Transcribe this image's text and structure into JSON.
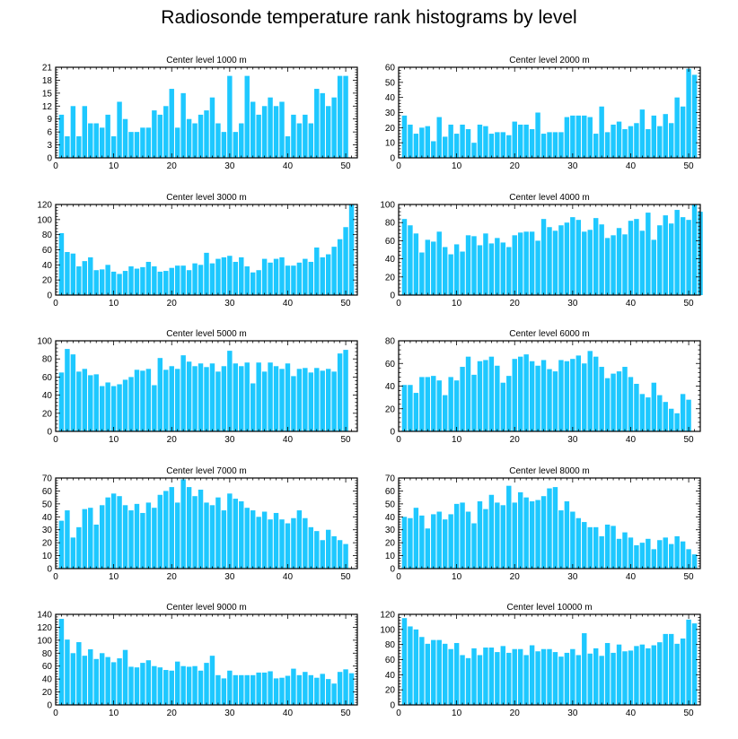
{
  "title": "Radiosonde temperature rank histograms by level",
  "chart_data": [
    {
      "type": "bar",
      "title": "Center level 1000 m",
      "xlim": [
        0,
        52
      ],
      "ylim": [
        0,
        21
      ],
      "xticks": [
        0,
        10,
        20,
        30,
        40,
        50
      ],
      "yticks": [
        0,
        3,
        6,
        9,
        12,
        15,
        18,
        21
      ],
      "values": [
        10,
        5,
        12,
        5,
        12,
        8,
        8,
        7,
        10,
        5,
        13,
        9,
        6,
        6,
        7,
        7,
        11,
        10,
        12,
        16,
        7,
        15,
        9,
        8,
        10,
        11,
        14,
        8,
        6,
        19,
        6,
        8,
        19,
        13,
        10,
        12,
        14,
        12,
        13,
        5,
        10,
        8,
        10,
        8,
        16,
        15,
        12,
        14,
        19,
        19
      ]
    },
    {
      "type": "bar",
      "title": "Center level 2000 m",
      "xlim": [
        0,
        52
      ],
      "ylim": [
        0,
        60
      ],
      "xticks": [
        0,
        10,
        20,
        30,
        40,
        50
      ],
      "yticks": [
        0,
        10,
        20,
        30,
        40,
        50,
        60
      ],
      "values": [
        28,
        22,
        16,
        20,
        21,
        11,
        27,
        14,
        22,
        16,
        22,
        19,
        10,
        22,
        21,
        16,
        17,
        17,
        15,
        24,
        22,
        22,
        19,
        30,
        16,
        17,
        17,
        17,
        27,
        28,
        28,
        28,
        27,
        16,
        34,
        17,
        22,
        24,
        19,
        21,
        23,
        32,
        19,
        28,
        21,
        29,
        23,
        40,
        34,
        59,
        55
      ]
    },
    {
      "type": "bar",
      "title": "Center level 3000 m",
      "xlim": [
        0,
        52
      ],
      "ylim": [
        0,
        120
      ],
      "xticks": [
        0,
        10,
        20,
        30,
        40,
        50
      ],
      "yticks": [
        0,
        20,
        40,
        60,
        80,
        100,
        120
      ],
      "values": [
        82,
        57,
        55,
        38,
        45,
        50,
        33,
        34,
        40,
        31,
        28,
        32,
        38,
        35,
        37,
        44,
        38,
        31,
        32,
        36,
        39,
        39,
        33,
        42,
        40,
        56,
        42,
        48,
        50,
        52,
        44,
        50,
        38,
        30,
        33,
        48,
        43,
        48,
        50,
        39,
        39,
        43,
        48,
        44,
        63,
        50,
        54,
        64,
        74,
        90,
        120
      ]
    },
    {
      "type": "bar",
      "title": "Center level 4000 m",
      "xlim": [
        0,
        52
      ],
      "ylim": [
        0,
        100
      ],
      "xticks": [
        0,
        10,
        20,
        30,
        40,
        50
      ],
      "yticks": [
        0,
        20,
        40,
        60,
        80,
        100
      ],
      "values": [
        84,
        77,
        68,
        47,
        61,
        59,
        70,
        53,
        45,
        56,
        48,
        66,
        65,
        55,
        68,
        57,
        63,
        58,
        53,
        66,
        69,
        70,
        70,
        60,
        84,
        75,
        71,
        77,
        80,
        86,
        83,
        70,
        72,
        85,
        78,
        63,
        66,
        74,
        67,
        82,
        84,
        71,
        91,
        61,
        77,
        88,
        79,
        94,
        86,
        83,
        100,
        92
      ]
    },
    {
      "type": "bar",
      "title": "Center level 5000 m",
      "xlim": [
        0,
        52
      ],
      "ylim": [
        0,
        100
      ],
      "xticks": [
        0,
        10,
        20,
        30,
        40,
        50
      ],
      "yticks": [
        0,
        20,
        40,
        60,
        80,
        100
      ],
      "values": [
        65,
        91,
        85,
        66,
        69,
        62,
        63,
        50,
        54,
        50,
        52,
        57,
        60,
        68,
        67,
        69,
        51,
        81,
        68,
        72,
        69,
        84,
        77,
        72,
        75,
        71,
        75,
        66,
        72,
        89,
        75,
        72,
        76,
        53,
        76,
        66,
        76,
        72,
        69,
        75,
        61,
        69,
        70,
        65,
        70,
        67,
        69,
        66,
        86,
        90
      ]
    },
    {
      "type": "bar",
      "title": "Center level 6000 m",
      "xlim": [
        0,
        52
      ],
      "ylim": [
        0,
        80
      ],
      "xticks": [
        0,
        10,
        20,
        30,
        40,
        50
      ],
      "yticks": [
        0,
        20,
        40,
        60,
        80
      ],
      "values": [
        41,
        41,
        34,
        48,
        48,
        49,
        45,
        32,
        48,
        45,
        57,
        66,
        50,
        62,
        63,
        66,
        58,
        43,
        49,
        64,
        66,
        68,
        62,
        58,
        63,
        55,
        53,
        63,
        62,
        64,
        67,
        60,
        71,
        66,
        57,
        47,
        51,
        53,
        57,
        48,
        42,
        33,
        30,
        43,
        32,
        26,
        20,
        16,
        33,
        28
      ]
    },
    {
      "type": "bar",
      "title": "Center level 7000 m",
      "xlim": [
        0,
        52
      ],
      "ylim": [
        0,
        70
      ],
      "xticks": [
        0,
        10,
        20,
        30,
        40,
        50
      ],
      "yticks": [
        0,
        10,
        20,
        30,
        40,
        50,
        60,
        70
      ],
      "values": [
        37,
        45,
        24,
        32,
        46,
        47,
        34,
        49,
        55,
        58,
        56,
        49,
        45,
        50,
        43,
        51,
        47,
        57,
        60,
        63,
        51,
        69,
        63,
        56,
        61,
        51,
        49,
        55,
        45,
        58,
        54,
        52,
        47,
        45,
        40,
        44,
        38,
        43,
        38,
        35,
        39,
        45,
        39,
        32,
        29,
        22,
        30,
        25,
        22,
        19
      ]
    },
    {
      "type": "bar",
      "title": "Center level 8000 m",
      "xlim": [
        0,
        52
      ],
      "ylim": [
        0,
        70
      ],
      "xticks": [
        0,
        10,
        20,
        30,
        40,
        50
      ],
      "yticks": [
        0,
        10,
        20,
        30,
        40,
        50,
        60,
        70
      ],
      "values": [
        40,
        39,
        47,
        41,
        31,
        42,
        44,
        38,
        42,
        50,
        51,
        44,
        35,
        52,
        46,
        57,
        51,
        49,
        64,
        51,
        59,
        55,
        52,
        53,
        56,
        62,
        63,
        45,
        52,
        44,
        39,
        36,
        32,
        32,
        25,
        34,
        33,
        23,
        28,
        24,
        18,
        20,
        23,
        15,
        22,
        24,
        19,
        25,
        21,
        15,
        11
      ]
    },
    {
      "type": "bar",
      "title": "Center level 9000 m",
      "xlim": [
        0,
        52
      ],
      "ylim": [
        0,
        140
      ],
      "xticks": [
        0,
        10,
        20,
        30,
        40,
        50
      ],
      "yticks": [
        0,
        20,
        40,
        60,
        80,
        100,
        120,
        140
      ],
      "values": [
        133,
        101,
        80,
        97,
        76,
        86,
        71,
        80,
        74,
        66,
        72,
        85,
        59,
        58,
        65,
        69,
        60,
        58,
        54,
        53,
        67,
        60,
        59,
        60,
        53,
        65,
        76,
        46,
        41,
        53,
        46,
        46,
        46,
        46,
        50,
        50,
        52,
        41,
        42,
        45,
        56,
        46,
        51,
        46,
        42,
        48,
        40,
        33,
        51,
        55,
        49
      ]
    },
    {
      "type": "bar",
      "title": "Center level 10000 m",
      "xlim": [
        0,
        52
      ],
      "ylim": [
        0,
        120
      ],
      "xticks": [
        0,
        10,
        20,
        30,
        40,
        50
      ],
      "yticks": [
        0,
        20,
        40,
        60,
        80,
        100,
        120
      ],
      "values": [
        115,
        104,
        100,
        90,
        81,
        86,
        86,
        81,
        74,
        82,
        66,
        62,
        75,
        66,
        76,
        76,
        70,
        78,
        69,
        74,
        74,
        66,
        79,
        71,
        74,
        74,
        70,
        64,
        69,
        74,
        66,
        95,
        68,
        75,
        65,
        82,
        69,
        80,
        71,
        72,
        78,
        80,
        75,
        79,
        83,
        94,
        94,
        81,
        88,
        113,
        108
      ]
    }
  ]
}
